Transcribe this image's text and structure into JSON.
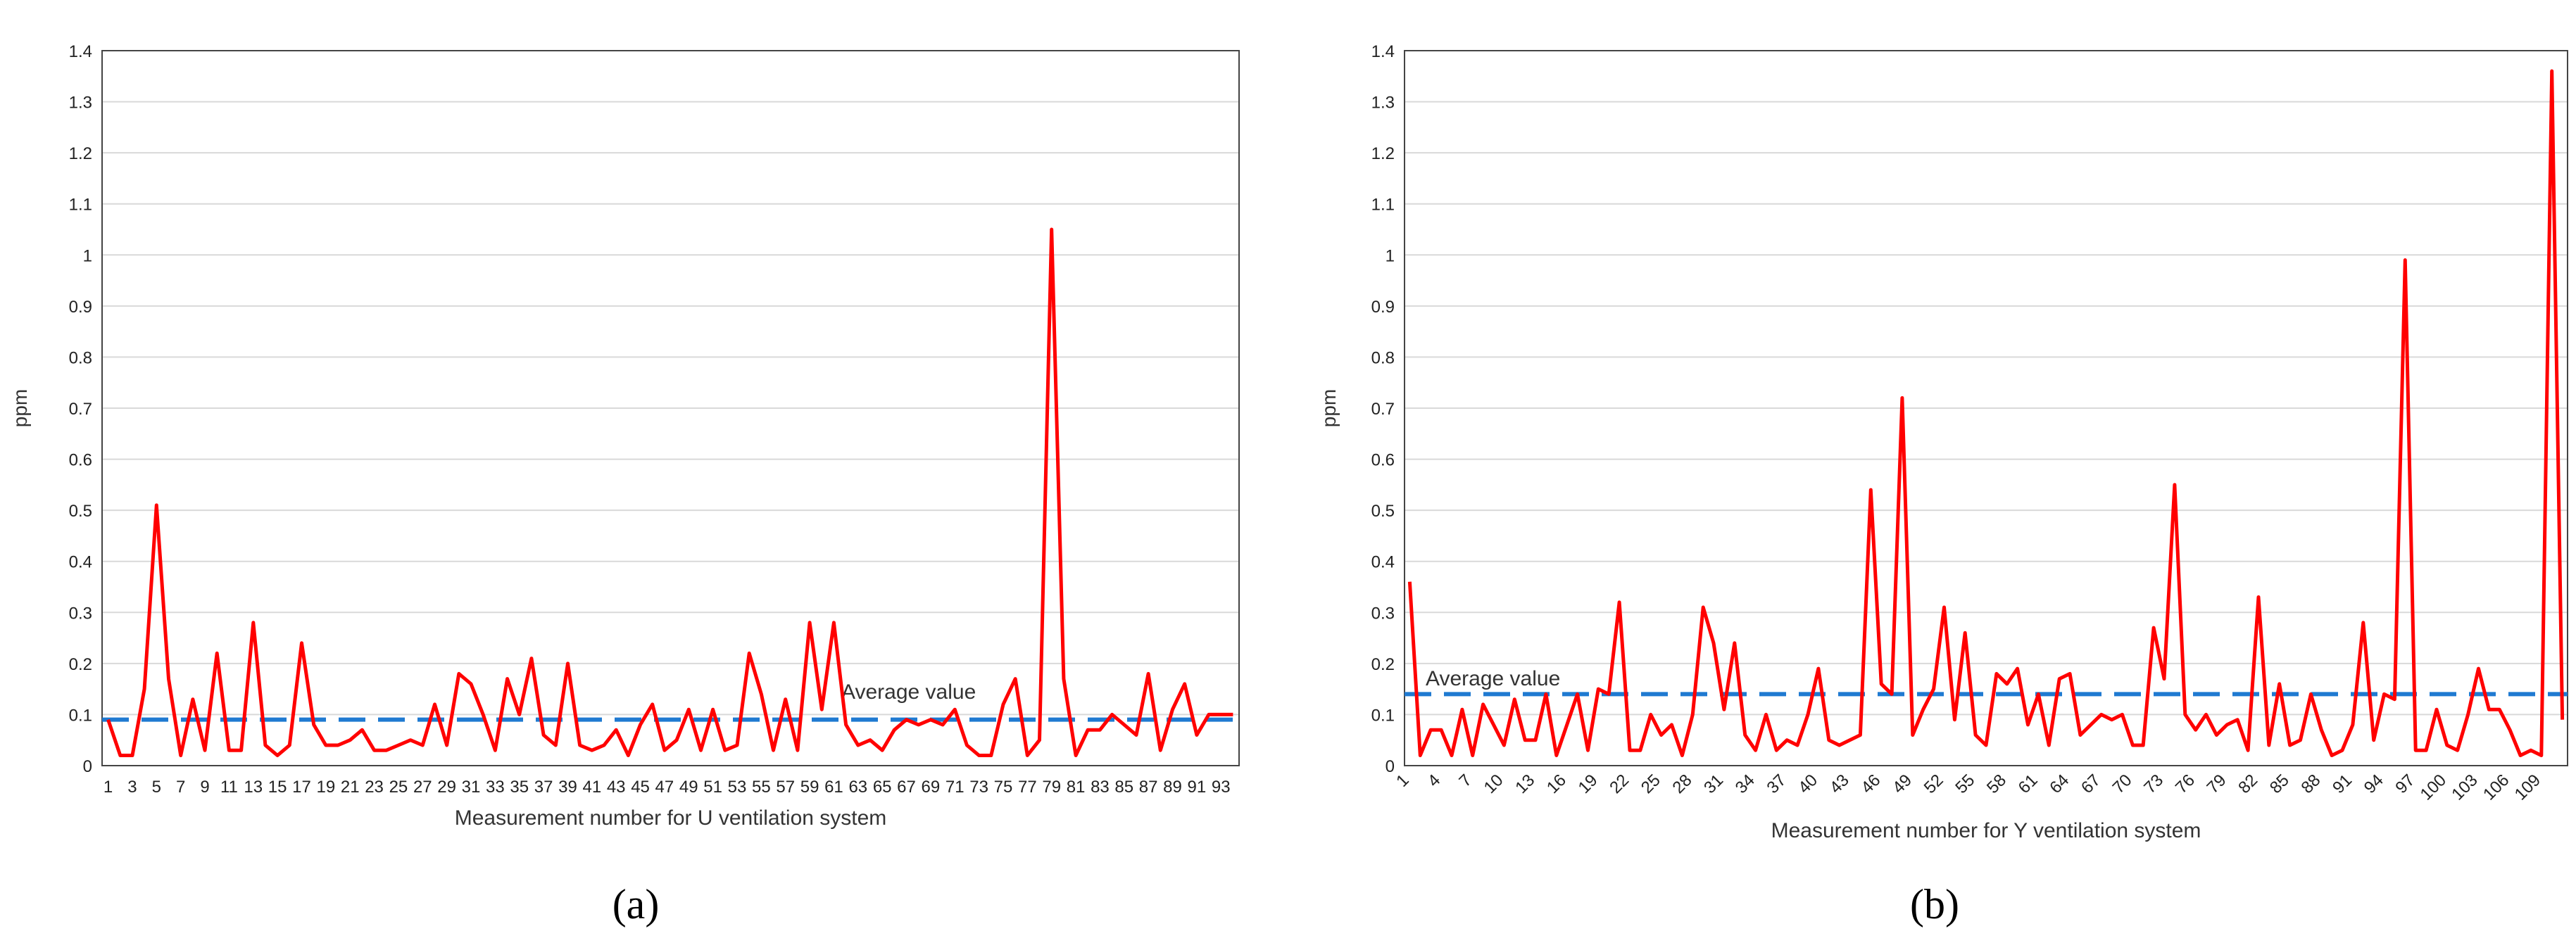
{
  "chart_data": [
    {
      "type": "line",
      "panel_label": "(a)",
      "xlabel": "Measurement number for U ventilation system",
      "ylabel": "ppm",
      "ylim": [
        0,
        1.4
      ],
      "yticks": [
        "0",
        "0.1",
        "0.2",
        "0.3",
        "0.4",
        "0.5",
        "0.6",
        "0.7",
        "0.8",
        "0.9",
        "1",
        "1.1",
        "1.2",
        "1.3",
        "1.4"
      ],
      "grid": true,
      "x_tick_step": 2,
      "x": [
        1,
        2,
        3,
        4,
        5,
        6,
        7,
        8,
        9,
        10,
        11,
        12,
        13,
        14,
        15,
        16,
        17,
        18,
        19,
        20,
        21,
        22,
        23,
        24,
        25,
        26,
        27,
        28,
        29,
        30,
        31,
        32,
        33,
        34,
        35,
        36,
        37,
        38,
        39,
        40,
        41,
        42,
        43,
        44,
        45,
        46,
        47,
        48,
        49,
        50,
        51,
        52,
        53,
        54,
        55,
        56,
        57,
        58,
        59,
        60,
        61,
        62,
        63,
        64,
        65,
        66,
        67,
        68,
        69,
        70,
        71,
        72,
        73,
        74,
        75,
        76,
        77,
        78,
        79,
        80,
        81,
        82,
        83,
        84,
        85,
        86,
        87,
        88,
        89,
        90,
        91,
        92,
        93,
        94
      ],
      "series": [
        {
          "values": [
            0.09,
            0.02,
            0.02,
            0.15,
            0.51,
            0.17,
            0.02,
            0.13,
            0.03,
            0.22,
            0.03,
            0.03,
            0.28,
            0.04,
            0.02,
            0.04,
            0.24,
            0.08,
            0.04,
            0.04,
            0.05,
            0.07,
            0.03,
            0.03,
            0.04,
            0.05,
            0.04,
            0.12,
            0.04,
            0.18,
            0.16,
            0.1,
            0.03,
            0.17,
            0.1,
            0.21,
            0.06,
            0.04,
            0.2,
            0.04,
            0.03,
            0.04,
            0.07,
            0.02,
            0.08,
            0.12,
            0.03,
            0.05,
            0.11,
            0.03,
            0.11,
            0.03,
            0.04,
            0.22,
            0.14,
            0.03,
            0.13,
            0.03,
            0.28,
            0.11,
            0.28,
            0.08,
            0.04,
            0.05,
            0.03,
            0.07,
            0.09,
            0.08,
            0.09,
            0.08,
            0.11,
            0.04,
            0.02,
            0.02,
            0.12,
            0.17,
            0.02,
            0.05,
            1.05,
            0.17,
            0.02,
            0.07,
            0.07,
            0.1,
            0.08,
            0.06,
            0.18,
            0.03,
            0.11,
            0.16,
            0.06,
            0.1,
            0.1,
            0.1
          ],
          "color": "#ff0000"
        }
      ],
      "average": {
        "label": "Average value",
        "value": 0.09,
        "color": "#1f7ad1"
      }
    },
    {
      "type": "line",
      "panel_label": "(b)",
      "xlabel": "Measurement number for Y ventilation system",
      "ylabel": "ppm",
      "ylim": [
        0,
        1.4
      ],
      "yticks": [
        "0",
        "0.1",
        "0.2",
        "0.3",
        "0.4",
        "0.5",
        "0.6",
        "0.7",
        "0.8",
        "0.9",
        "1",
        "1.1",
        "1.2",
        "1.3",
        "1.4"
      ],
      "grid": true,
      "x_tick_step": 3,
      "x": [
        1,
        2,
        3,
        4,
        5,
        6,
        7,
        8,
        9,
        10,
        11,
        12,
        13,
        14,
        15,
        16,
        17,
        18,
        19,
        20,
        21,
        22,
        23,
        24,
        25,
        26,
        27,
        28,
        29,
        30,
        31,
        32,
        33,
        34,
        35,
        36,
        37,
        38,
        39,
        40,
        41,
        42,
        43,
        44,
        45,
        46,
        47,
        48,
        49,
        50,
        51,
        52,
        53,
        54,
        55,
        56,
        57,
        58,
        59,
        60,
        61,
        62,
        63,
        64,
        65,
        66,
        67,
        68,
        69,
        70,
        71,
        72,
        73,
        74,
        75,
        76,
        77,
        78,
        79,
        80,
        81,
        82,
        83,
        84,
        85,
        86,
        87,
        88,
        89,
        90,
        91,
        92,
        93,
        94,
        95,
        96,
        97,
        98,
        99,
        100,
        101,
        102,
        103,
        104,
        105,
        106,
        107,
        108,
        109,
        110,
        111
      ],
      "series": [
        {
          "values": [
            0.36,
            0.02,
            0.07,
            0.07,
            0.02,
            0.11,
            0.02,
            0.12,
            0.08,
            0.04,
            0.13,
            0.05,
            0.05,
            0.14,
            0.02,
            0.08,
            0.14,
            0.03,
            0.15,
            0.14,
            0.32,
            0.03,
            0.03,
            0.1,
            0.06,
            0.08,
            0.02,
            0.1,
            0.31,
            0.24,
            0.11,
            0.24,
            0.06,
            0.03,
            0.1,
            0.03,
            0.05,
            0.04,
            0.1,
            0.19,
            0.05,
            0.04,
            0.05,
            0.06,
            0.54,
            0.16,
            0.14,
            0.72,
            0.06,
            0.11,
            0.15,
            0.31,
            0.09,
            0.26,
            0.06,
            0.04,
            0.18,
            0.16,
            0.19,
            0.08,
            0.14,
            0.04,
            0.17,
            0.18,
            0.06,
            0.08,
            0.1,
            0.09,
            0.1,
            0.04,
            0.04,
            0.27,
            0.17,
            0.55,
            0.1,
            0.07,
            0.1,
            0.06,
            0.08,
            0.09,
            0.03,
            0.33,
            0.04,
            0.16,
            0.04,
            0.05,
            0.14,
            0.07,
            0.02,
            0.03,
            0.08,
            0.28,
            0.05,
            0.14,
            0.13,
            0.99,
            0.03,
            0.03,
            0.11,
            0.04,
            0.03,
            0.1,
            0.19,
            0.11,
            0.11,
            0.07,
            0.02,
            0.03,
            0.02,
            1.36,
            0.09
          ],
          "color": "#ff0000"
        }
      ],
      "average": {
        "label": "Average value",
        "value": 0.14,
        "color": "#1f7ad1"
      }
    }
  ]
}
